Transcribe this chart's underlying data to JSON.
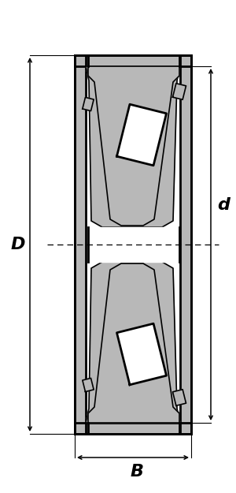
{
  "bg_color": "#ffffff",
  "gray": "#b8b8b8",
  "black": "#000000",
  "white": "#ffffff",
  "lw_thick": 2.0,
  "lw_thin": 1.2,
  "lw_dim": 1.1,
  "label_D": "D",
  "label_d": "d",
  "label_B": "B",
  "font_size": 16
}
